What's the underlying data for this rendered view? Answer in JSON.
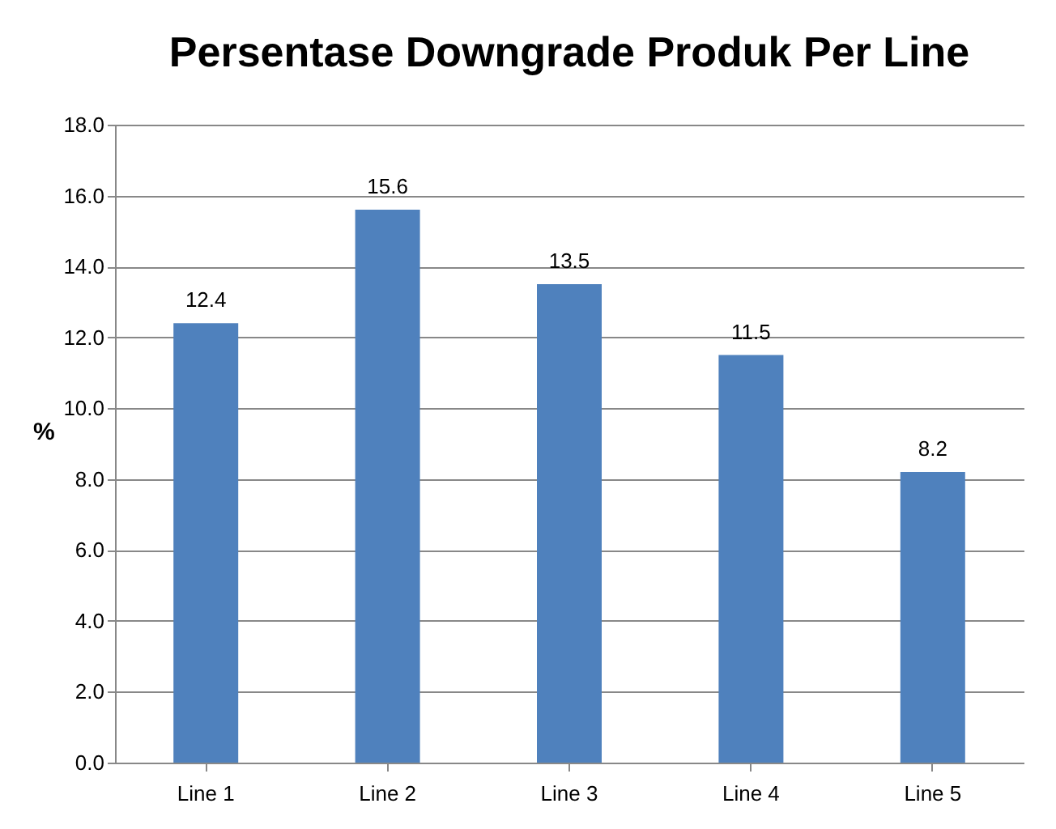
{
  "chart_data": {
    "type": "bar",
    "title": "Persentase Downgrade Produk Per Line",
    "ylabel": "%",
    "categories": [
      "Line 1",
      "Line 2",
      "Line 3",
      "Line 4",
      "Line 5"
    ],
    "values": [
      12.4,
      15.6,
      13.5,
      11.5,
      8.2
    ],
    "color": "#4f81bd",
    "ylim": [
      0,
      18
    ],
    "yticks": [
      {
        "value": 0,
        "label": "0.0"
      },
      {
        "value": 2,
        "label": "2.0"
      },
      {
        "value": 4,
        "label": "4.0"
      },
      {
        "value": 6,
        "label": "6.0"
      },
      {
        "value": 8,
        "label": "8.0"
      },
      {
        "value": 10,
        "label": "10.0"
      },
      {
        "value": 12,
        "label": "12.0"
      },
      {
        "value": 14,
        "label": "14.0"
      },
      {
        "value": 16,
        "label": "16.0"
      },
      {
        "value": 18,
        "label": "18.0"
      }
    ],
    "grid": "y",
    "data_labels": true
  }
}
